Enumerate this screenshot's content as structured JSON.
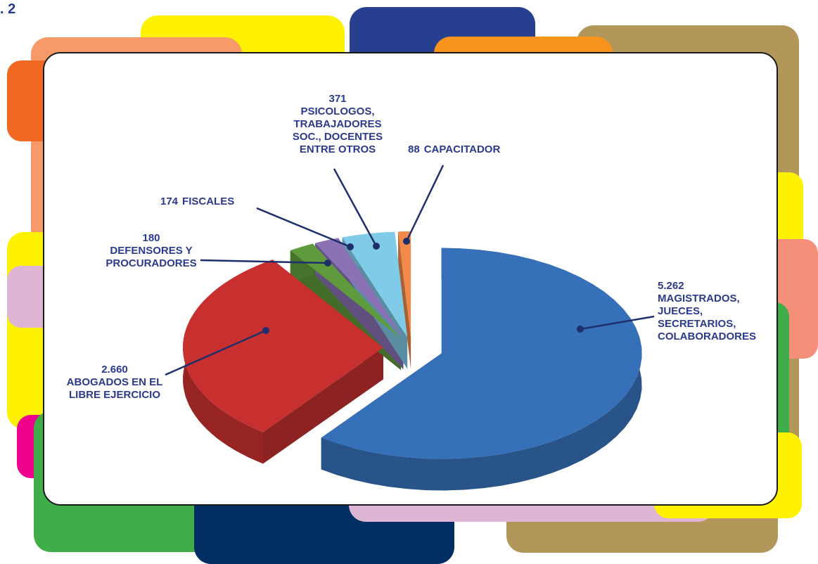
{
  "page_fragment": ". 2",
  "chart_data": {
    "type": "pie",
    "categories": [
      "MAGISTRADOS, JUECES, SECRETARIOS, COLABORADORES",
      "ABOGADOS EN EL LIBRE EJERCICIO",
      "DEFENSORES Y PROCURADORES",
      "FISCALES",
      "PSICOLOGOS, TRABAJADORES SOC., DOCENTES ENTRE OTROS",
      "CAPACITADOR"
    ],
    "values": [
      5262,
      2660,
      180,
      174,
      371,
      88
    ],
    "value_labels": [
      "5.262",
      "2.660",
      "180",
      "174",
      "371",
      "88"
    ],
    "colors": [
      "#3570b8",
      "#c8302f",
      "#5f9a3c",
      "#8a72b5",
      "#7fcbe8",
      "#ef8a4a"
    ]
  }
}
